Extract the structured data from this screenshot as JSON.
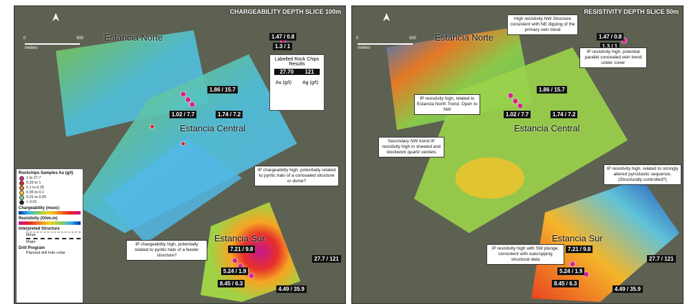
{
  "panels": [
    {
      "title": "CHARGEABILITY DEPTH SLICE 100m",
      "areas": [
        "Estancia Norte",
        "Estancia Central",
        "Estancia Sur"
      ],
      "labels": [
        "1.47 / 0.8",
        "1.3 / 1",
        "1.86 / 15.7",
        "1.02 / 7.7",
        "1.74 / 7.2",
        "7.21 / 9.8",
        "27.7 / 121",
        "5.24 / 1.9",
        "8.45 / 6.3",
        "4.49 / 35.9"
      ],
      "scale": [
        "0",
        "500",
        "meters"
      ],
      "annotations": [
        "IP chargeability high, potentially related to pyritic halo of a concealed structure or dome?",
        "IP chargeability high, potentially related to pyritic halo of a feeder structure?"
      ]
    },
    {
      "title": "RESISTIVITY DEPTH SLICE 50m",
      "areas": [
        "Estancia Norte",
        "Estancia Central",
        "Estancia Sur"
      ],
      "labels": [
        "1.47 / 0.8",
        "1.3 / 1",
        "1.86 / 15.7",
        "1.02 / 7.7",
        "1.74 / 7.2",
        "7.21 / 9.8",
        "27.7 / 121",
        "5.24 / 1.9",
        "8.45 / 6.3",
        "4.49 / 35.9"
      ],
      "scale": [
        "0",
        "500",
        "meters"
      ],
      "annotations": [
        "High resistivity NW Structure consistent with NE dipping of the primary vein trend",
        "IP resistivity high, potential parallel concealed vein trend under cover",
        "IP resistivity high, related to Estancia North Trend. Open to NW",
        "Secondary NW trend IP resistivity high in sheeted and stockwork quartz veinlets",
        "IP resistivity high, related to strongly altered pyroclastic sequence. (Structurally controlled?)",
        "IP resistivity high with SW plunge, consistent with outcropping structural data"
      ]
    }
  ],
  "rock_chips": {
    "title": "Labelled Rock Chips Results",
    "au": "27.70",
    "ag": "121",
    "au_unit": "Au (g/t)",
    "ag_unit": "Ag (g/t)"
  },
  "legend": {
    "rockchips_title": "Rockchips Samples Au (g/t)",
    "rockchips": [
      "1 to 27.7",
      "0.25 to 1",
      "0.1 to 0.25",
      "0.05 to 0.1",
      "0.01 to 0.05",
      "< 0.01"
    ],
    "chargeability": "Chargeability (msec)",
    "resistivity": "Resistivity (Ohm.m)",
    "structure": "Interpreted Structure",
    "minor": "Minor",
    "major": "Major",
    "drill": "Drill Program",
    "collar": "Planned drill hole collar"
  }
}
